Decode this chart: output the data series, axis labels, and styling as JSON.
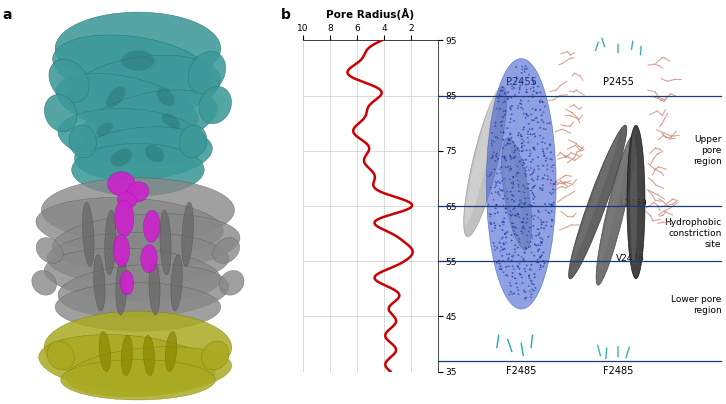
{
  "panel_a_label": "a",
  "panel_b_label": "b",
  "pore_radius_xlabel": "Pore Radius(Å)",
  "x_ticks": [
    10,
    8,
    6,
    4,
    2
  ],
  "y_min": 35,
  "y_max": 95,
  "y_ticks": [
    35,
    45,
    55,
    65,
    75,
    85,
    95
  ],
  "line_y_P2455": 85,
  "line_y_L2469": 65,
  "line_y_V2476": 55,
  "line_y_F2485": 37,
  "pore_curve_color": "#cc0000",
  "grid_color": "#cccccc",
  "background_color": "#ffffff",
  "text_color": "#000000",
  "line_color": "#1a3a7a",
  "teal_color": "#3d9999",
  "purple_color": "#cc22cc",
  "grey_color": "#888888",
  "yellow_color": "#aaaa22",
  "blue_dot_color": "#2233bb",
  "pink_color": "#cc8877",
  "dark_grey": "#444444",
  "light_grey": "#aaaaaa",
  "annotation_fontsize": 7,
  "tick_fontsize": 6.5,
  "label_fontsize": 7.5
}
